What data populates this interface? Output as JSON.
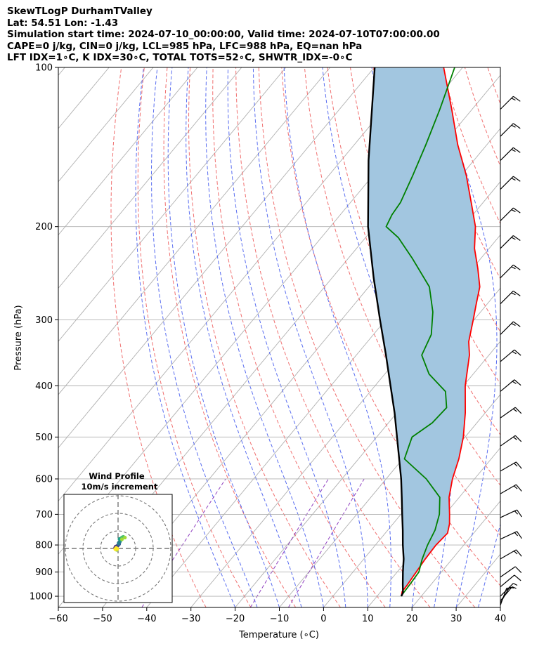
{
  "header": {
    "line1": "SkewTLogP DurhamTValley",
    "line2": "Lat: 54.51   Lon: -1.43",
    "line3": "Simulation start time: 2024-07-10_00:00:00, Valid time: 2024-07-10T07:00:00.00",
    "line4": "CAPE=0 j/kg, CIN=0 j/kg, LCL=985 hPa, LFC=988 hPa, EQ=nan hPa",
    "line5": "LFT IDX=1∘C, K IDX=30∘C, TOTAL TOTS=52∘C, SHWTR_IDX=-0∘C"
  },
  "colors": {
    "temperature": "#ff0000",
    "dewpoint": "#008000",
    "parcel": "#000000",
    "cape_fill": "#a2c6e0",
    "isotherm": "#b0b0b0",
    "dry_adiabat": "#f07070",
    "moist_adiabat": "#5a6ef0",
    "mixing_ratio": "#9040c0",
    "wind_barb": "#000000"
  },
  "chart_data": [
    {
      "type": "line",
      "title": "SkewTLogP DurhamTValley",
      "xlabel": "Temperature (∘C)",
      "ylabel": "Pressure (hPa)",
      "xlim": [
        -60,
        40
      ],
      "ylim": [
        1050,
        100
      ],
      "y_scale": "log",
      "grid": true,
      "x_ticks": [
        "−60",
        "−50",
        "−40",
        "−30",
        "−20",
        "−10",
        "0",
        "10",
        "20",
        "30",
        "40"
      ],
      "x_tick_values": [
        -60,
        -50,
        -40,
        -30,
        -20,
        -10,
        0,
        10,
        20,
        30,
        40
      ],
      "y_ticks": [
        "100",
        "200",
        "300",
        "400",
        "500",
        "600",
        "700",
        "800",
        "900",
        "1000"
      ],
      "y_tick_values": [
        100,
        200,
        300,
        400,
        500,
        600,
        700,
        800,
        900,
        1000
      ],
      "series": [
        {
          "name": "Temperature",
          "color": "#ff0000",
          "points": [
            [
              1000,
              15.5
            ],
            [
              980,
              14.8
            ],
            [
              950,
              14.7
            ],
            [
              925,
              14.5
            ],
            [
              900,
              14.3
            ],
            [
              850,
              13.9
            ],
            [
              800,
              13.7
            ],
            [
              760,
              14.1
            ],
            [
              730,
              12.8
            ],
            [
              700,
              11.0
            ],
            [
              650,
              7.7
            ],
            [
              600,
              5.0
            ],
            [
              550,
              2.7
            ],
            [
              500,
              -0.4
            ],
            [
              450,
              -4.5
            ],
            [
              400,
              -9.6
            ],
            [
              350,
              -14.4
            ],
            [
              330,
              -17.1
            ],
            [
              300,
              -20.2
            ],
            [
              280,
              -22.5
            ],
            [
              260,
              -24.9
            ],
            [
              240,
              -28.8
            ],
            [
              220,
              -33.3
            ],
            [
              200,
              -37.2
            ],
            [
              180,
              -42.7
            ],
            [
              160,
              -48.9
            ],
            [
              140,
              -56.6
            ],
            [
              120,
              -64.6
            ],
            [
              100,
              -74.3
            ]
          ]
        },
        {
          "name": "Dewpoint",
          "color": "#008000",
          "points": [
            [
              1000,
              15.4
            ],
            [
              950,
              15.2
            ],
            [
              900,
              14.9
            ],
            [
              850,
              13.2
            ],
            [
              800,
              11.8
            ],
            [
              750,
              10.7
            ],
            [
              700,
              8.7
            ],
            [
              650,
              5.6
            ],
            [
              600,
              -0.9
            ],
            [
              550,
              -9.6
            ],
            [
              500,
              -12.0
            ],
            [
              470,
              -10.1
            ],
            [
              440,
              -9.7
            ],
            [
              410,
              -13.0
            ],
            [
              380,
              -20.0
            ],
            [
              350,
              -25.2
            ],
            [
              320,
              -26.9
            ],
            [
              290,
              -30.8
            ],
            [
              260,
              -36.3
            ],
            [
              230,
              -45.4
            ],
            [
              210,
              -52.5
            ],
            [
              200,
              -57.4
            ],
            [
              190,
              -58.3
            ],
            [
              180,
              -58.7
            ],
            [
              160,
              -61.0
            ],
            [
              140,
              -63.8
            ],
            [
              120,
              -67.3
            ],
            [
              100,
              -71.8
            ]
          ]
        },
        {
          "name": "Parcel",
          "color": "#000000",
          "points": [
            [
              1000,
              15.5
            ],
            [
              985,
              15.2
            ],
            [
              950,
              13.6
            ],
            [
              900,
              11.3
            ],
            [
              850,
              9.0
            ],
            [
              800,
              6.2
            ],
            [
              750,
              3.4
            ],
            [
              700,
              0.3
            ],
            [
              650,
              -3.0
            ],
            [
              600,
              -6.6
            ],
            [
              550,
              -10.8
            ],
            [
              500,
              -15.4
            ],
            [
              450,
              -20.5
            ],
            [
              400,
              -26.5
            ],
            [
              350,
              -33.3
            ],
            [
              300,
              -41.3
            ],
            [
              250,
              -50.6
            ],
            [
              200,
              -61.5
            ],
            [
              150,
              -73.8
            ],
            [
              100,
              -89.9
            ]
          ]
        }
      ],
      "shaded_regions": [
        {
          "name": "CAPE/CIN area",
          "color": "#a2c6e0"
        }
      ]
    },
    {
      "type": "scatter",
      "title": "Wind Profile",
      "subtitle": "10m/s increment",
      "rings_ms": [
        10,
        20,
        30
      ],
      "points_uv": [
        [
          -0.9,
          -0.5
        ],
        [
          -1.2,
          -0.1
        ],
        [
          -1.6,
          0.5
        ],
        [
          -1.4,
          1.0
        ],
        [
          -0.7,
          1.3
        ],
        [
          -0.2,
          1.6
        ],
        [
          0.2,
          2.1
        ],
        [
          0.6,
          2.5
        ],
        [
          0.3,
          3.0
        ],
        [
          0.9,
          3.6
        ],
        [
          1.2,
          4.3
        ],
        [
          1.5,
          4.8
        ],
        [
          0.8,
          5.4
        ],
        [
          1.9,
          5.9
        ],
        [
          2.3,
          6.3
        ],
        [
          3.0,
          6.6
        ],
        [
          3.9,
          6.2
        ],
        [
          2.2,
          5.2
        ],
        [
          -0.8,
          -0.8
        ],
        [
          -1.6,
          -0.4
        ],
        [
          -1.1,
          0.3
        ],
        [
          -0.4,
          -0.2
        ]
      ]
    },
    {
      "type": "wind_barbs",
      "name": "Wind barbs",
      "pressures_hpa": [
        1040,
        1030,
        1020,
        1000,
        960,
        920,
        850,
        780,
        710,
        640,
        580,
        520,
        460,
        410,
        360,
        320,
        280,
        250,
        220,
        195,
        170,
        150,
        135,
        120
      ],
      "speeds_kt": [
        5,
        5,
        5,
        5,
        10,
        10,
        15,
        15,
        15,
        15,
        15,
        15,
        15,
        15,
        15,
        15,
        15,
        15,
        15,
        15,
        15,
        15,
        15,
        15
      ],
      "directions_deg": [
        200,
        210,
        220,
        225,
        230,
        235,
        240,
        245,
        245,
        240,
        240,
        235,
        235,
        230,
        230,
        225,
        225,
        225,
        225,
        225,
        225,
        225,
        225,
        225
      ]
    }
  ]
}
